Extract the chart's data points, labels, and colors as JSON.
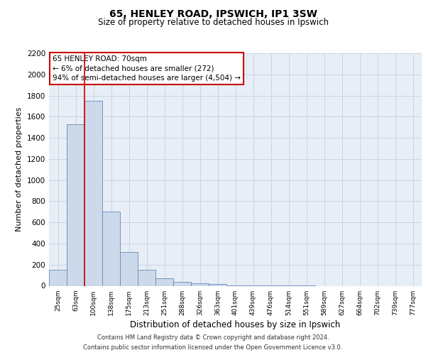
{
  "title_line1": "65, HENLEY ROAD, IPSWICH, IP1 3SW",
  "title_line2": "Size of property relative to detached houses in Ipswich",
  "xlabel": "Distribution of detached houses by size in Ipswich",
  "ylabel": "Number of detached properties",
  "categories": [
    "25sqm",
    "63sqm",
    "100sqm",
    "138sqm",
    "175sqm",
    "213sqm",
    "251sqm",
    "288sqm",
    "326sqm",
    "363sqm",
    "401sqm",
    "439sqm",
    "476sqm",
    "514sqm",
    "551sqm",
    "589sqm",
    "627sqm",
    "664sqm",
    "702sqm",
    "739sqm",
    "777sqm"
  ],
  "values": [
    150,
    1530,
    1750,
    700,
    320,
    150,
    70,
    40,
    25,
    15,
    5,
    3,
    2,
    1,
    1,
    0,
    0,
    0,
    0,
    0,
    0
  ],
  "bar_color": "#ccd9ea",
  "bar_edge_color": "#6688bb",
  "vline_color": "#cc0000",
  "vline_pos": 1.5,
  "ylim": [
    0,
    2200
  ],
  "yticks": [
    0,
    200,
    400,
    600,
    800,
    1000,
    1200,
    1400,
    1600,
    1800,
    2000,
    2200
  ],
  "annotation_text": "65 HENLEY ROAD: 70sqm\n← 6% of detached houses are smaller (272)\n94% of semi-detached houses are larger (4,504) →",
  "annotation_box_color": "#ffffff",
  "annotation_box_edge": "#cc0000",
  "footer_line1": "Contains HM Land Registry data © Crown copyright and database right 2024.",
  "footer_line2": "Contains public sector information licensed under the Open Government Licence v3.0.",
  "grid_color": "#c8d4e4",
  "background_color": "#e8eef6",
  "title1_fontsize": 10,
  "title2_fontsize": 8.5,
  "ylabel_fontsize": 8,
  "xlabel_fontsize": 8.5,
  "ytick_fontsize": 7.5,
  "xtick_fontsize": 6.5,
  "annotation_fontsize": 7.5,
  "footer_fontsize": 6
}
